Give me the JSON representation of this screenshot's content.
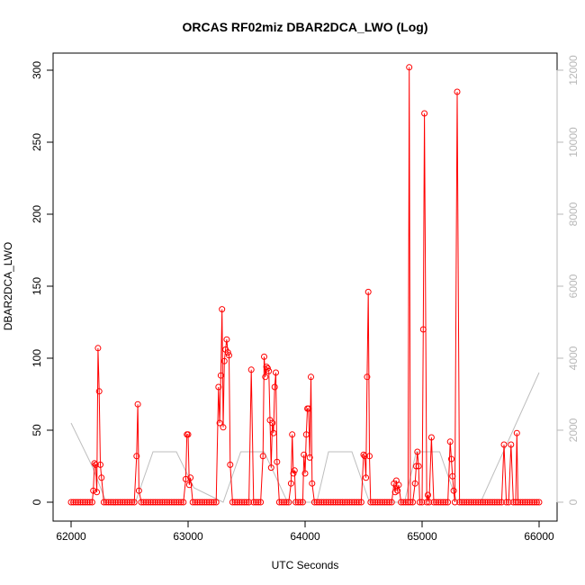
{
  "chart_data": {
    "type": "line",
    "title": "ORCAS RF02miz DBAR2DCA_LWO (Log)",
    "xlabel": "UTC Seconds",
    "ylabel": "DBAR2DCA_LWO",
    "xlim": [
      62000,
      66000
    ],
    "ylim": [
      0,
      300
    ],
    "y2lim": [
      0,
      12000
    ],
    "x_ticks": [
      62000,
      63000,
      64000,
      65000,
      66000
    ],
    "y_ticks": [
      0,
      50,
      100,
      150,
      200,
      250,
      300
    ],
    "y2_ticks": [
      0,
      2000,
      4000,
      6000,
      8000,
      10000,
      12000
    ],
    "grid": false,
    "legend": "none",
    "colors": {
      "primary": "#ff0000",
      "secondary": "#bebebe",
      "axis": "#000000",
      "secondary_axis": "#b8b8b8"
    },
    "series": [
      {
        "axis": "left",
        "style": "line+open-circles",
        "baseline_interval": 20,
        "points": [
          [
            62190,
            8
          ],
          [
            62200,
            27
          ],
          [
            62210,
            26
          ],
          [
            62220,
            7
          ],
          [
            62230,
            107
          ],
          [
            62240,
            77
          ],
          [
            62250,
            26
          ],
          [
            62260,
            17
          ],
          [
            62560,
            32
          ],
          [
            62570,
            68
          ],
          [
            62580,
            8
          ],
          [
            62980,
            16
          ],
          [
            62990,
            47
          ],
          [
            63000,
            47
          ],
          [
            63010,
            12
          ],
          [
            63020,
            17
          ],
          [
            63260,
            80
          ],
          [
            63270,
            55
          ],
          [
            63280,
            88
          ],
          [
            63290,
            134
          ],
          [
            63300,
            52
          ],
          [
            63310,
            98
          ],
          [
            63320,
            106
          ],
          [
            63330,
            113
          ],
          [
            63340,
            104
          ],
          [
            63350,
            102
          ],
          [
            63360,
            26
          ],
          [
            63540,
            92
          ],
          [
            63640,
            32
          ],
          [
            63650,
            101
          ],
          [
            63660,
            87
          ],
          [
            63670,
            94
          ],
          [
            63680,
            93
          ],
          [
            63690,
            91
          ],
          [
            63700,
            57
          ],
          [
            63710,
            24
          ],
          [
            63720,
            55
          ],
          [
            63730,
            48
          ],
          [
            63740,
            80
          ],
          [
            63750,
            90
          ],
          [
            63760,
            28
          ],
          [
            63880,
            13
          ],
          [
            63890,
            47
          ],
          [
            63900,
            20
          ],
          [
            63910,
            22
          ],
          [
            63990,
            33
          ],
          [
            64000,
            20
          ],
          [
            64010,
            47
          ],
          [
            64020,
            65
          ],
          [
            64030,
            65
          ],
          [
            64040,
            31
          ],
          [
            64050,
            87
          ],
          [
            64060,
            13
          ],
          [
            64500,
            33
          ],
          [
            64510,
            32
          ],
          [
            64520,
            17
          ],
          [
            64530,
            87
          ],
          [
            64540,
            146
          ],
          [
            64550,
            32
          ],
          [
            64760,
            13
          ],
          [
            64770,
            7
          ],
          [
            64780,
            15
          ],
          [
            64790,
            8
          ],
          [
            64800,
            12
          ],
          [
            64890,
            302
          ],
          [
            64940,
            13
          ],
          [
            64950,
            25
          ],
          [
            64960,
            35
          ],
          [
            64970,
            25
          ],
          [
            65010,
            120
          ],
          [
            65020,
            270
          ],
          [
            65050,
            5
          ],
          [
            65080,
            45
          ],
          [
            65240,
            42
          ],
          [
            65250,
            30
          ],
          [
            65260,
            18
          ],
          [
            65270,
            8
          ],
          [
            65300,
            285
          ],
          [
            65700,
            40
          ],
          [
            65760,
            40
          ],
          [
            65810,
            48
          ]
        ]
      },
      {
        "axis": "right",
        "style": "line",
        "points": [
          [
            62000,
            2200
          ],
          [
            62180,
            1000
          ],
          [
            62300,
            0
          ],
          [
            62550,
            0
          ],
          [
            62700,
            1400
          ],
          [
            62900,
            1400
          ],
          [
            63050,
            400
          ],
          [
            63300,
            0
          ],
          [
            63450,
            1400
          ],
          [
            63650,
            1400
          ],
          [
            63850,
            0
          ],
          [
            64100,
            0
          ],
          [
            64200,
            1400
          ],
          [
            64400,
            1400
          ],
          [
            64550,
            0
          ],
          [
            64850,
            0
          ],
          [
            64950,
            1400
          ],
          [
            65150,
            1400
          ],
          [
            65300,
            0
          ],
          [
            65500,
            0
          ],
          [
            66000,
            3600
          ]
        ]
      }
    ]
  }
}
